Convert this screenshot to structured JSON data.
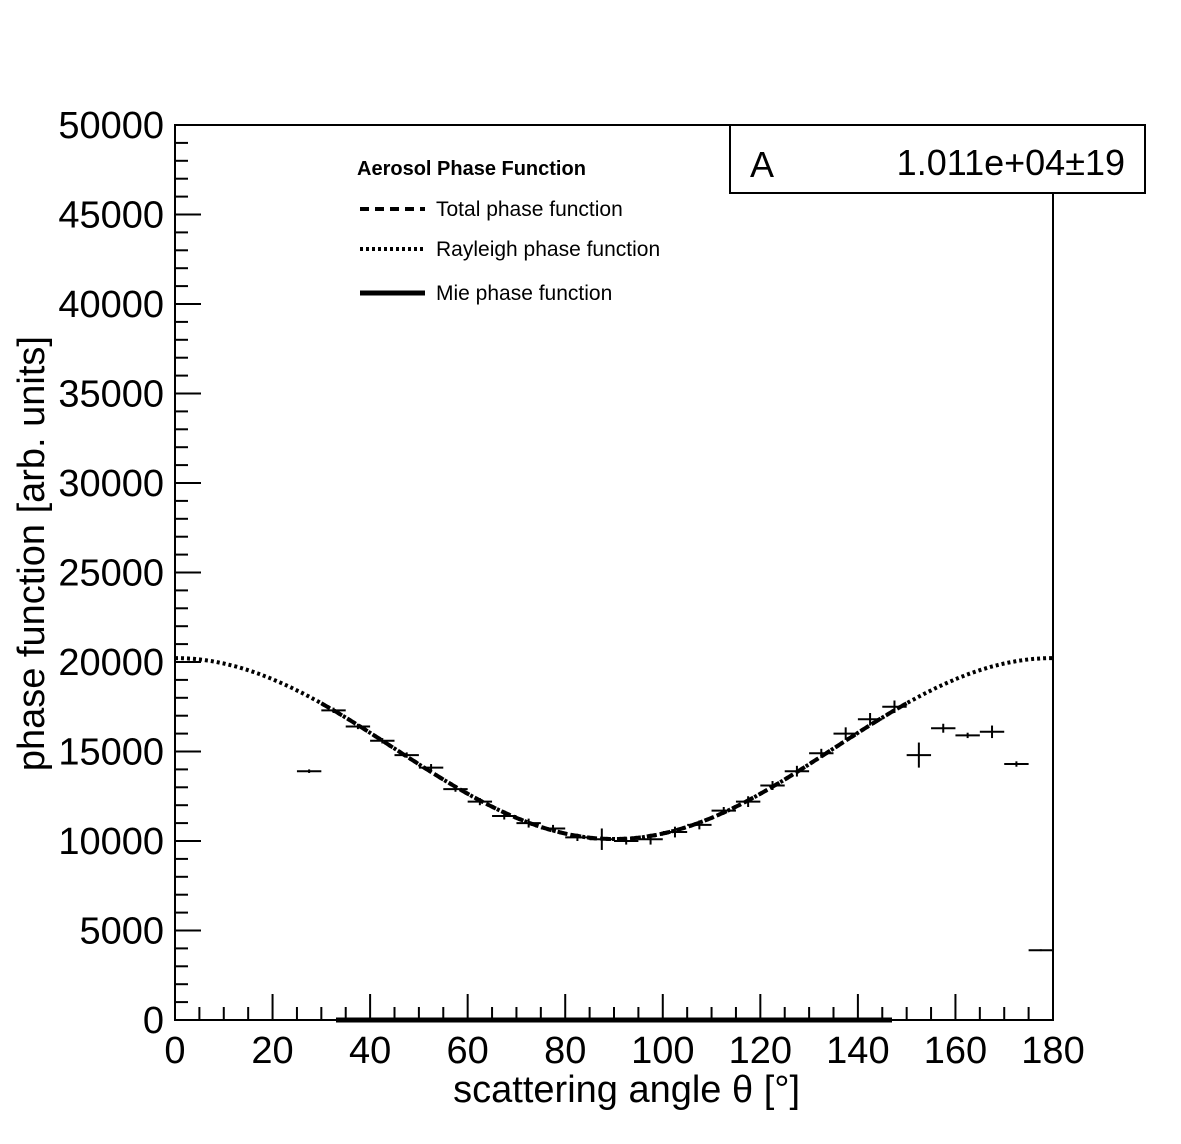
{
  "chart_data": {
    "type": "scatter",
    "title": "",
    "xlabel": "scattering angle θ [°]",
    "ylabel": "phase function [arb. units]",
    "xlim": [
      0,
      180
    ],
    "ylim": [
      0,
      50000
    ],
    "x_ticks": [
      0,
      20,
      40,
      60,
      80,
      100,
      120,
      140,
      160,
      180
    ],
    "y_ticks": [
      0,
      5000,
      10000,
      15000,
      20000,
      25000,
      30000,
      35000,
      40000,
      45000,
      50000
    ],
    "x_tick_labels": [
      "0",
      "20",
      "40",
      "60",
      "80",
      "100",
      "120",
      "140",
      "160",
      "180"
    ],
    "y_tick_labels": [
      "0",
      "5000",
      "10000",
      "15000",
      "20000",
      "25000",
      "30000",
      "35000",
      "40000",
      "45000",
      "50000"
    ],
    "grid": false,
    "legend": {
      "title": "Aerosol Phase Function",
      "placement": "top-center",
      "entries": [
        {
          "label": "Total phase function",
          "style": "dashed"
        },
        {
          "label": "Rayleigh phase function",
          "style": "dotted"
        },
        {
          "label": "Mie phase function",
          "style": "solid"
        }
      ]
    },
    "stats_box": {
      "param_name": "A",
      "param_value": "1.011e+04",
      "pm": "±",
      "param_error": "19"
    },
    "data_points": [
      {
        "x": 27.5,
        "y": 13900,
        "xerr": 2.5,
        "yerr": 100
      },
      {
        "x": 32.5,
        "y": 17300,
        "xerr": 2.5,
        "yerr": 150
      },
      {
        "x": 37.5,
        "y": 16400,
        "xerr": 2.5,
        "yerr": 150
      },
      {
        "x": 42.5,
        "y": 15600,
        "xerr": 2.5,
        "yerr": 150
      },
      {
        "x": 47.5,
        "y": 14800,
        "xerr": 2.5,
        "yerr": 150
      },
      {
        "x": 52.5,
        "y": 14100,
        "xerr": 2.5,
        "yerr": 200
      },
      {
        "x": 57.5,
        "y": 12900,
        "xerr": 2.5,
        "yerr": 150
      },
      {
        "x": 62.5,
        "y": 12200,
        "xerr": 2.5,
        "yerr": 200
      },
      {
        "x": 67.5,
        "y": 11400,
        "xerr": 2.5,
        "yerr": 200
      },
      {
        "x": 72.5,
        "y": 11000,
        "xerr": 2.5,
        "yerr": 250
      },
      {
        "x": 77.5,
        "y": 10700,
        "xerr": 2.5,
        "yerr": 200
      },
      {
        "x": 82.5,
        "y": 10200,
        "xerr": 2.5,
        "yerr": 200
      },
      {
        "x": 87.5,
        "y": 10100,
        "xerr": 2.5,
        "yerr": 600
      },
      {
        "x": 92.5,
        "y": 10000,
        "xerr": 2.5,
        "yerr": 200
      },
      {
        "x": 97.5,
        "y": 10100,
        "xerr": 2.5,
        "yerr": 300
      },
      {
        "x": 102.5,
        "y": 10500,
        "xerr": 2.5,
        "yerr": 300
      },
      {
        "x": 107.5,
        "y": 10900,
        "xerr": 2.5,
        "yerr": 250
      },
      {
        "x": 112.5,
        "y": 11700,
        "xerr": 2.5,
        "yerr": 200
      },
      {
        "x": 117.5,
        "y": 12200,
        "xerr": 2.5,
        "yerr": 300
      },
      {
        "x": 122.5,
        "y": 13100,
        "xerr": 2.5,
        "yerr": 250
      },
      {
        "x": 127.5,
        "y": 13900,
        "xerr": 2.5,
        "yerr": 300
      },
      {
        "x": 132.5,
        "y": 14900,
        "xerr": 2.5,
        "yerr": 250
      },
      {
        "x": 137.5,
        "y": 16000,
        "xerr": 2.5,
        "yerr": 350
      },
      {
        "x": 142.5,
        "y": 16800,
        "xerr": 2.5,
        "yerr": 350
      },
      {
        "x": 147.5,
        "y": 17500,
        "xerr": 2.5,
        "yerr": 350
      },
      {
        "x": 152.5,
        "y": 14800,
        "xerr": 2.5,
        "yerr": 700
      },
      {
        "x": 157.5,
        "y": 16300,
        "xerr": 2.5,
        "yerr": 250
      },
      {
        "x": 162.5,
        "y": 15900,
        "xerr": 2.5,
        "yerr": 150
      },
      {
        "x": 167.5,
        "y": 16100,
        "xerr": 2.5,
        "yerr": 350
      },
      {
        "x": 172.5,
        "y": 14300,
        "xerr": 2.5,
        "yerr": 150
      },
      {
        "x": 177.5,
        "y": 3900,
        "xerr": 2.5,
        "yerr": 50
      }
    ],
    "series": [
      {
        "label_ref": "Total phase function",
        "style": "dashed",
        "model": "A*(1+cos²θ)",
        "A": 10110,
        "x_range": [
          30,
          150
        ]
      },
      {
        "label_ref": "Rayleigh phase function",
        "style": "dotted",
        "model": "A*(1+cos²θ)",
        "A": 10110,
        "x_range": [
          0,
          180
        ]
      },
      {
        "label_ref": "Mie phase function",
        "style": "solid",
        "value": 0,
        "x_range": [
          33,
          147
        ]
      }
    ]
  }
}
